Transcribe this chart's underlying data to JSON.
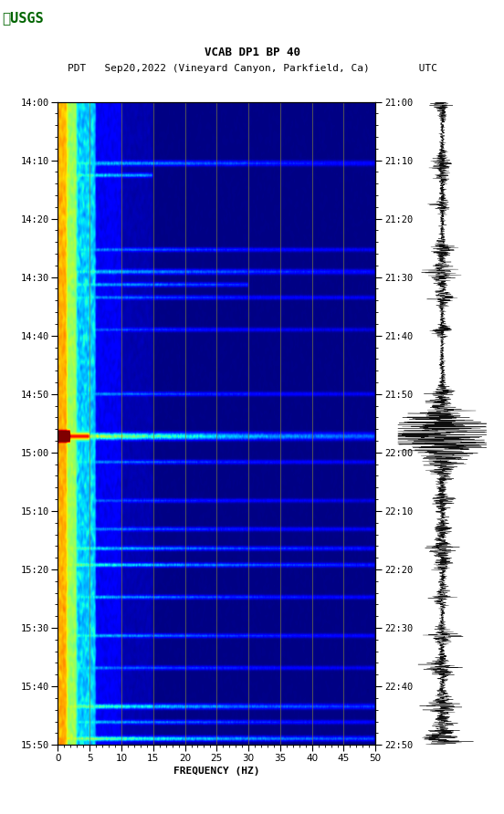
{
  "title_line1": "VCAB DP1 BP 40",
  "title_line2": "PDT   Sep20,2022 (Vineyard Canyon, Parkfield, Ca)        UTC",
  "xlabel": "FREQUENCY (HZ)",
  "freq_min": 0,
  "freq_max": 50,
  "freq_ticks": [
    0,
    5,
    10,
    15,
    20,
    25,
    30,
    35,
    40,
    45,
    50
  ],
  "pdt_labels": [
    "14:00",
    "14:10",
    "14:20",
    "14:30",
    "14:40",
    "14:50",
    "15:00",
    "15:10",
    "15:20",
    "15:30",
    "15:40",
    "15:50"
  ],
  "utc_labels": [
    "21:00",
    "21:10",
    "21:20",
    "21:30",
    "21:40",
    "21:50",
    "22:00",
    "22:10",
    "22:20",
    "22:30",
    "22:40",
    "22:50"
  ],
  "background_color": "#ffffff",
  "grid_color": "#808040",
  "colormap": "jet",
  "figure_width": 5.52,
  "figure_height": 8.92
}
